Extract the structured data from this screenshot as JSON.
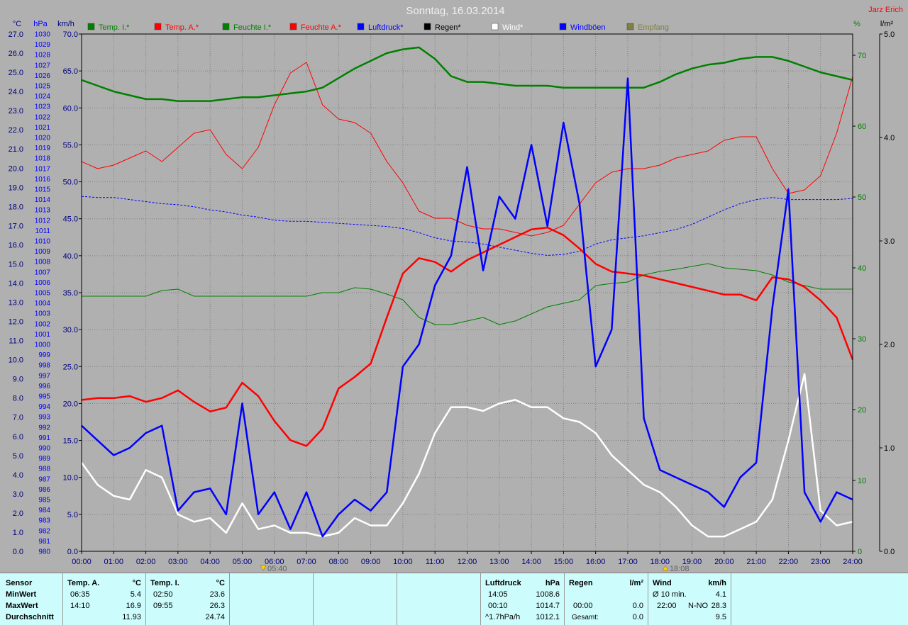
{
  "title": "Sonntag, 16.03.2014",
  "author": "Jarz Erich",
  "unit_labels": {
    "temp": "°C",
    "pressure": "hPa",
    "speed": "km/h",
    "humidity": "%",
    "rain": "l/m²"
  },
  "legend": [
    {
      "label": "Temp. I.*",
      "color": "#008000"
    },
    {
      "label": "Temp. A.*",
      "color": "#ff0000"
    },
    {
      "label": "Feuchte I.*",
      "color": "#008000"
    },
    {
      "label": "Feuchte A.*",
      "color": "#ff0000"
    },
    {
      "label": "Luftdruck*",
      "color": "#0000ff"
    },
    {
      "label": "Regen*",
      "color": "#000000"
    },
    {
      "label": "Wind*",
      "color": "#ffffff"
    },
    {
      "label": "Windböen",
      "color": "#0000ff"
    },
    {
      "label": "Empfang",
      "color": "#808040"
    }
  ],
  "sun": {
    "rise": "05:40",
    "set": "18:08"
  },
  "chart_data": {
    "type": "line",
    "x_hours": [
      0,
      0.5,
      1,
      1.5,
      2,
      2.5,
      3,
      3.5,
      4,
      4.5,
      5,
      5.5,
      6,
      6.5,
      7,
      7.5,
      8,
      8.5,
      9,
      9.5,
      10,
      10.5,
      11,
      11.5,
      12,
      12.5,
      13,
      13.5,
      14,
      14.5,
      15,
      15.5,
      16,
      16.5,
      17,
      17.5,
      18,
      18.5,
      19,
      19.5,
      20,
      20.5,
      21,
      21.5,
      22,
      22.5,
      23,
      23.5,
      24
    ],
    "x_ticks": [
      "00:00",
      "01:00",
      "02:00",
      "03:00",
      "04:00",
      "05:00",
      "06:00",
      "07:00",
      "08:00",
      "09:00",
      "10:00",
      "11:00",
      "12:00",
      "13:00",
      "14:00",
      "15:00",
      "16:00",
      "17:00",
      "18:00",
      "19:00",
      "20:00",
      "21:00",
      "22:00",
      "23:00",
      "24:00"
    ],
    "axes": {
      "temp": {
        "label": "°C",
        "range": [
          0,
          27
        ],
        "step": 1
      },
      "pressure": {
        "label": "hPa",
        "range": [
          980,
          1030
        ],
        "step": 1
      },
      "speed": {
        "label": "km/h",
        "range": [
          0,
          70
        ],
        "step": 5
      },
      "humidity": {
        "label": "%",
        "range": [
          0,
          73
        ],
        "ticks": [
          0,
          10,
          20,
          30,
          40,
          50,
          60,
          70
        ]
      },
      "rain": {
        "label": "l/m²",
        "range": [
          0,
          5
        ],
        "ticks": [
          0.0,
          1.0,
          2.0,
          3.0,
          4.0,
          5.0
        ]
      }
    },
    "series": [
      {
        "name": "Temp. I.*",
        "axis": "temp",
        "color": "#008000",
        "width": 2.5,
        "values": [
          24.6,
          24.3,
          24.0,
          23.8,
          23.6,
          23.6,
          23.5,
          23.5,
          23.5,
          23.6,
          23.7,
          23.7,
          23.8,
          23.9,
          24.0,
          24.2,
          24.7,
          25.2,
          25.6,
          26.0,
          26.2,
          26.3,
          25.7,
          24.8,
          24.5,
          24.5,
          24.4,
          24.3,
          24.3,
          24.3,
          24.2,
          24.2,
          24.2,
          24.2,
          24.2,
          24.2,
          24.5,
          24.9,
          25.2,
          25.4,
          25.5,
          25.7,
          25.8,
          25.8,
          25.6,
          25.3,
          25.0,
          24.8,
          24.6
        ]
      },
      {
        "name": "Temp. A.*",
        "axis": "temp",
        "color": "#ff0000",
        "width": 2.5,
        "values": [
          7.9,
          8.0,
          8.0,
          8.1,
          7.8,
          8.0,
          8.4,
          7.8,
          7.3,
          7.5,
          8.8,
          8.1,
          6.8,
          5.8,
          5.5,
          6.4,
          8.5,
          9.1,
          9.8,
          12.2,
          14.5,
          15.3,
          15.1,
          14.6,
          15.2,
          15.6,
          16.0,
          16.4,
          16.8,
          16.9,
          16.5,
          15.8,
          15.0,
          14.6,
          14.5,
          14.4,
          14.2,
          14.0,
          13.8,
          13.6,
          13.4,
          13.4,
          13.1,
          14.3,
          14.2,
          13.8,
          13.1,
          12.2,
          10.0
        ]
      },
      {
        "name": "Feuchte I.*",
        "axis": "humidity",
        "color": "#008000",
        "width": 1,
        "values": [
          36.0,
          36.0,
          36.0,
          36.0,
          36.0,
          36.8,
          37.0,
          36.0,
          36.0,
          36.0,
          36.0,
          36.0,
          36.0,
          36.0,
          36.0,
          36.5,
          36.5,
          37.2,
          37.0,
          36.3,
          35.5,
          33.0,
          32.0,
          32.0,
          32.5,
          33.0,
          32.0,
          32.5,
          33.5,
          34.5,
          35.0,
          35.5,
          37.5,
          37.8,
          38.0,
          39.0,
          39.5,
          39.8,
          40.2,
          40.6,
          40.0,
          39.8,
          39.6,
          39.0,
          38.0,
          37.5,
          37.0,
          37.0,
          37.0
        ]
      },
      {
        "name": "Feuchte A.*",
        "axis": "humidity",
        "color": "#ff0000",
        "width": 1,
        "values": [
          55.0,
          54.0,
          54.5,
          55.5,
          56.5,
          55.0,
          57.0,
          59.0,
          59.5,
          56.0,
          54.0,
          57.0,
          63.0,
          67.5,
          69.0,
          63.0,
          61.0,
          60.5,
          59.0,
          55.0,
          52.0,
          48.0,
          47.0,
          47.0,
          46.0,
          45.5,
          45.5,
          45.0,
          44.5,
          45.0,
          46.0,
          49.0,
          52.0,
          53.5,
          54.0,
          54.0,
          54.5,
          55.5,
          56.0,
          56.5,
          58.0,
          58.5,
          58.5,
          54.0,
          50.5,
          51.0,
          53.0,
          59.0,
          67.0
        ]
      },
      {
        "name": "Luftdruck*",
        "axis": "pressure",
        "color": "#0000ff",
        "width": 1,
        "dash": "3,2",
        "values": [
          1014.3,
          1014.2,
          1014.2,
          1014.0,
          1013.8,
          1013.6,
          1013.5,
          1013.3,
          1013.0,
          1012.8,
          1012.5,
          1012.3,
          1012.0,
          1011.9,
          1011.9,
          1011.8,
          1011.7,
          1011.6,
          1011.5,
          1011.4,
          1011.2,
          1010.8,
          1010.3,
          1010.0,
          1009.9,
          1009.7,
          1009.4,
          1009.1,
          1008.8,
          1008.6,
          1008.7,
          1009.0,
          1009.7,
          1010.1,
          1010.3,
          1010.5,
          1010.8,
          1011.1,
          1011.6,
          1012.3,
          1013.0,
          1013.6,
          1014.0,
          1014.2,
          1014.0,
          1014.0,
          1014.0,
          1014.0,
          1014.1
        ]
      },
      {
        "name": "Wind*",
        "axis": "speed",
        "color": "#ffffff",
        "width": 2.5,
        "values": [
          12.0,
          9.0,
          7.5,
          7.0,
          11.0,
          10.0,
          5.0,
          4.0,
          4.5,
          2.5,
          6.5,
          3.0,
          3.5,
          2.5,
          2.5,
          2.0,
          2.5,
          4.5,
          3.5,
          3.5,
          6.5,
          10.5,
          16.0,
          19.5,
          19.5,
          19.0,
          20.0,
          20.5,
          19.5,
          19.5,
          18.0,
          17.5,
          16.0,
          13.0,
          11.0,
          9.0,
          8.0,
          6.0,
          3.5,
          2.0,
          2.0,
          3.0,
          4.0,
          7.0,
          15.0,
          24.0,
          5.5,
          3.5,
          4.0
        ]
      },
      {
        "name": "Windböen",
        "axis": "speed",
        "color": "#0000ff",
        "width": 2.5,
        "values": [
          17.0,
          15.0,
          13.0,
          14.0,
          16.0,
          17.0,
          5.5,
          8.0,
          8.5,
          5.0,
          20.0,
          5.0,
          8.0,
          3.0,
          8.0,
          2.0,
          5.0,
          7.0,
          5.5,
          8.0,
          25.0,
          28.0,
          36.0,
          40.0,
          52.0,
          38.0,
          48.0,
          45.0,
          55.0,
          44.0,
          58.0,
          47.0,
          25.0,
          30.0,
          64.0,
          18.0,
          11.0,
          10.0,
          9.0,
          8.0,
          6.0,
          10.0,
          12.0,
          33.0,
          49.0,
          8.0,
          4.0,
          8.0,
          7.0
        ]
      },
      {
        "name": "Regen*",
        "axis": "rain",
        "color": "#000000",
        "width": 1,
        "values": [
          0,
          0,
          0,
          0,
          0,
          0,
          0,
          0,
          0,
          0,
          0,
          0,
          0,
          0,
          0,
          0,
          0,
          0,
          0,
          0,
          0,
          0,
          0,
          0,
          0,
          0,
          0,
          0,
          0,
          0,
          0,
          0,
          0,
          0,
          0,
          0,
          0,
          0,
          0,
          0,
          0,
          0,
          0,
          0,
          0,
          0,
          0,
          0,
          0
        ]
      }
    ]
  },
  "stats": {
    "sensor": {
      "header": "Sensor",
      "rows": [
        "MinWert",
        "MaxWert",
        "Durchschnitt"
      ]
    },
    "temp_a": {
      "header": "Temp. A.",
      "unit": "°C",
      "min_time": "06:35",
      "min": "5.4",
      "max_time": "14:10",
      "max": "16.9",
      "avg": "11.93"
    },
    "temp_i": {
      "header": "Temp. I.",
      "unit": "°C",
      "min_time": "02:50",
      "min": "23.6",
      "max_time": "09:55",
      "max": "26.3",
      "avg": "24.74"
    },
    "pressure": {
      "header": "Luftdruck",
      "unit": "hPa",
      "min_time": "14:05",
      "min": "1008.6",
      "max_time": "00:10",
      "max": "1014.7",
      "trend": "^1.7hPa/h",
      "avg": "1012.1"
    },
    "rain": {
      "header": "Regen",
      "unit": "l/m²",
      "time": "00:00",
      "value": "0.0",
      "total_label": "Gesamt:",
      "total": "0.0"
    },
    "wind": {
      "header": "Wind",
      "unit": "km/h",
      "avg_label": "Ø 10 min.",
      "avg": "4.1",
      "max_time": "22:00",
      "dir": "N-NO",
      "max": "28.3",
      "mean": "9.5"
    }
  }
}
